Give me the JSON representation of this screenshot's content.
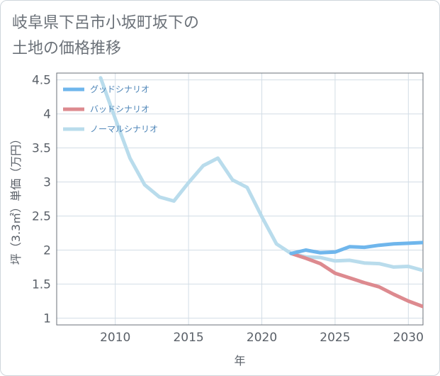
{
  "title_lines": [
    "岐阜県下呂市小坂町坂下の",
    "土地の価格推移"
  ],
  "chart_data": {
    "type": "line",
    "title": "岐阜県下呂市小坂町坂下の土地の価格推移",
    "xlabel": "年",
    "ylabel": "坪（3.3㎡）単価（万円）",
    "xlim": [
      2006,
      2031
    ],
    "ylim": [
      0.9,
      4.6
    ],
    "x_ticks": [
      2010,
      2015,
      2020,
      2025,
      2030
    ],
    "x_tick_labels": [
      "2010",
      "2015",
      "2020",
      "2025",
      "2030"
    ],
    "y_ticks": [
      1,
      1.5,
      2,
      2.5,
      3,
      3.5,
      4,
      4.5
    ],
    "y_tick_labels": [
      "1",
      "1.5",
      "2",
      "2.5",
      "3",
      "3.5",
      "4",
      "4.5"
    ],
    "grid": true,
    "legend_position": "top-left",
    "series": [
      {
        "name": "グッドシナリオ",
        "color": "#6fb6ec",
        "x": [
          2022,
          2023,
          2024,
          2025,
          2026,
          2027,
          2028,
          2029,
          2030,
          2031
        ],
        "y": [
          1.95,
          2.0,
          1.96,
          1.97,
          2.05,
          2.04,
          2.07,
          2.09,
          2.1,
          2.11
        ]
      },
      {
        "name": "バッドシナリオ",
        "color": "#dd8a8f",
        "x": [
          2022,
          2023,
          2024,
          2025,
          2026,
          2027,
          2028,
          2029,
          2030,
          2031
        ],
        "y": [
          1.95,
          1.88,
          1.8,
          1.66,
          1.59,
          1.52,
          1.46,
          1.35,
          1.25,
          1.17
        ]
      },
      {
        "name": "ノーマルシナリオ",
        "color": "#b9dcec",
        "x": [
          2009,
          2010,
          2011,
          2012,
          2013,
          2014,
          2015,
          2016,
          2017,
          2018,
          2019,
          2020,
          2021,
          2022,
          2023,
          2024,
          2025,
          2026,
          2027,
          2028,
          2029,
          2030,
          2031
        ],
        "y": [
          4.53,
          3.93,
          3.35,
          2.96,
          2.78,
          2.72,
          2.99,
          3.24,
          3.35,
          3.03,
          2.92,
          2.49,
          2.09,
          1.95,
          1.9,
          1.89,
          1.84,
          1.85,
          1.81,
          1.8,
          1.75,
          1.76,
          1.7
        ]
      }
    ]
  }
}
